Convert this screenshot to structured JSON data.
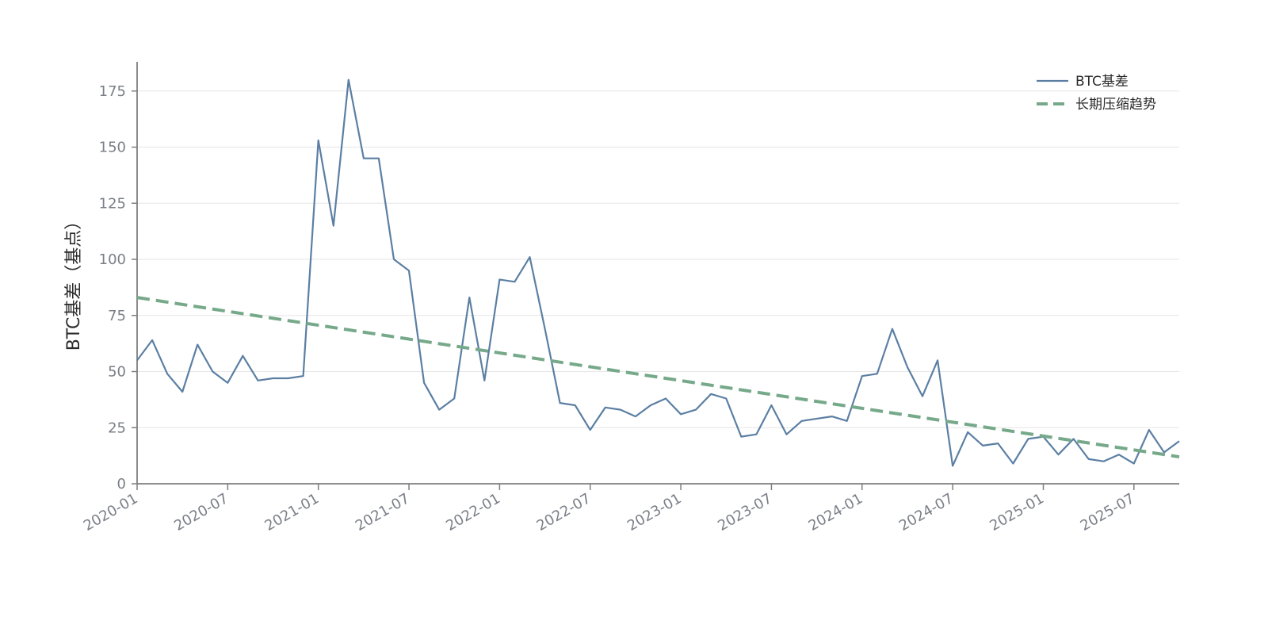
{
  "chart_data": {
    "type": "line",
    "title": "",
    "xlabel": "",
    "ylabel": "BTC基差（基点）",
    "ylim": [
      0,
      188
    ],
    "yticks": [
      0,
      25,
      50,
      75,
      100,
      125,
      150,
      175
    ],
    "xticks": [
      "2020-01",
      "2020-07",
      "2021-01",
      "2021-07",
      "2022-01",
      "2022-07",
      "2023-01",
      "2023-07",
      "2024-01",
      "2024-07",
      "2025-01",
      "2025-07"
    ],
    "xrange": [
      "2020-01",
      "2025-10"
    ],
    "grid": "horizontal",
    "legend_position": "top-right",
    "colors": {
      "series": "#5b7fa3",
      "trend": "#76a98a",
      "grid": "#e6e6e6",
      "axis": "#7f7f7f"
    },
    "x": [
      "2020-01",
      "2020-02",
      "2020-03",
      "2020-04",
      "2020-05",
      "2020-06",
      "2020-07",
      "2020-08",
      "2020-09",
      "2020-10",
      "2020-11",
      "2020-12",
      "2021-01",
      "2021-02",
      "2021-03",
      "2021-04",
      "2021-05",
      "2021-06",
      "2021-07",
      "2021-08",
      "2021-09",
      "2021-10",
      "2021-11",
      "2021-12",
      "2022-01",
      "2022-02",
      "2022-03",
      "2022-04",
      "2022-05",
      "2022-06",
      "2022-07",
      "2022-08",
      "2022-09",
      "2022-10",
      "2022-11",
      "2022-12",
      "2023-01",
      "2023-02",
      "2023-03",
      "2023-04",
      "2023-05",
      "2023-06",
      "2023-07",
      "2023-08",
      "2023-09",
      "2023-10",
      "2023-11",
      "2023-12",
      "2024-01",
      "2024-02",
      "2024-03",
      "2024-04",
      "2024-05",
      "2024-06",
      "2024-07",
      "2024-08",
      "2024-09",
      "2024-10",
      "2024-11",
      "2024-12",
      "2025-01",
      "2025-02",
      "2025-03",
      "2025-04",
      "2025-05",
      "2025-06",
      "2025-07",
      "2025-08",
      "2025-09",
      "2025-10"
    ],
    "series": [
      {
        "name": "BTC基差",
        "style": "solid",
        "values": [
          55,
          64,
          49,
          41,
          62,
          50,
          45,
          57,
          46,
          47,
          47,
          48,
          153,
          115,
          180,
          145,
          145,
          100,
          95,
          45,
          33,
          38,
          83,
          46,
          91,
          90,
          101,
          69,
          36,
          35,
          24,
          34,
          33,
          30,
          35,
          38,
          31,
          33,
          40,
          38,
          21,
          22,
          35,
          22,
          28,
          29,
          30,
          28,
          48,
          49,
          69,
          52,
          39,
          55,
          8,
          23,
          17,
          18,
          9,
          20,
          21,
          13,
          20,
          11,
          10,
          13,
          9,
          24,
          14,
          19
        ]
      },
      {
        "name": "长期压缩趋势",
        "style": "dashed",
        "values_start_end": [
          83,
          12
        ]
      }
    ]
  }
}
